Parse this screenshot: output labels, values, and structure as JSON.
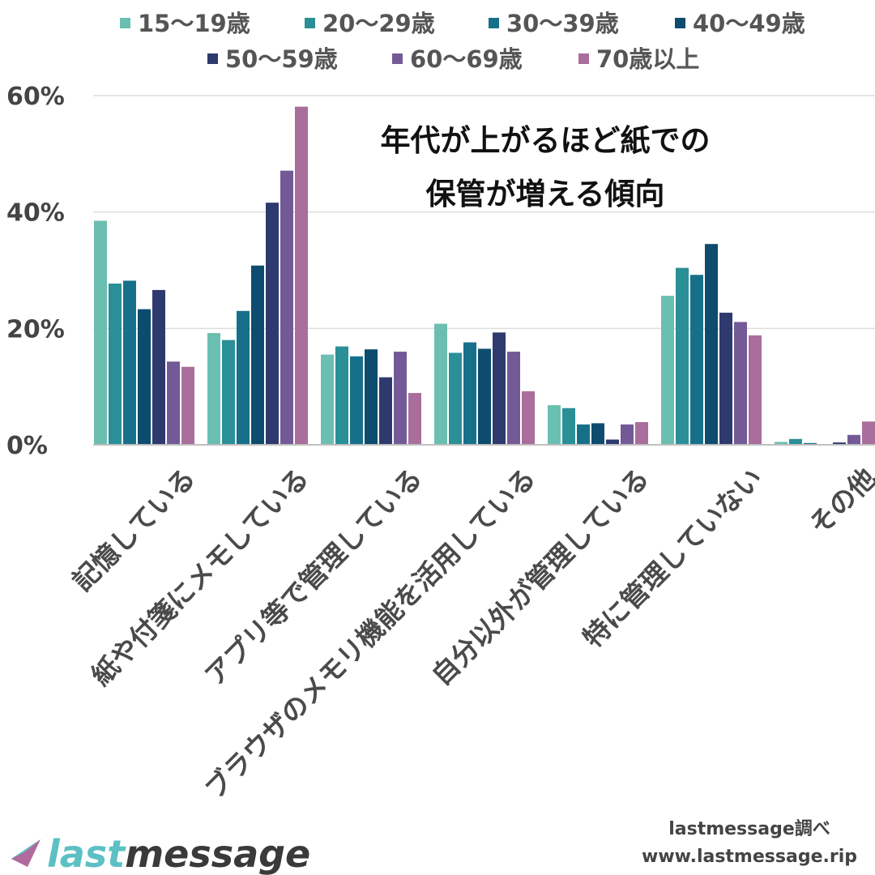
{
  "chart_data": {
    "type": "bar",
    "categories": [
      "記憶している",
      "紙や付箋にメモしている",
      "アプリ等で管理している",
      "ブラウザのメモリ機能を活用している",
      "自分以外が管理している",
      "特に管理していない",
      "その他"
    ],
    "series": [
      {
        "name": "15〜19歳",
        "color": "#6bbfb1",
        "values": [
          38.5,
          19.2,
          15.5,
          20.8,
          6.8,
          25.6,
          0.5
        ]
      },
      {
        "name": "20〜29歳",
        "color": "#2a8f96",
        "values": [
          27.7,
          18.0,
          16.9,
          15.8,
          6.3,
          30.4,
          1.0
        ]
      },
      {
        "name": "30〜39歳",
        "color": "#17708a",
        "values": [
          28.2,
          23.0,
          15.2,
          17.6,
          3.5,
          29.2,
          0.3
        ]
      },
      {
        "name": "40〜49歳",
        "color": "#0d4c6e",
        "values": [
          23.3,
          30.8,
          16.4,
          16.5,
          3.7,
          34.5,
          0.0
        ]
      },
      {
        "name": "50〜59歳",
        "color": "#2e3a6e",
        "values": [
          26.6,
          41.6,
          11.6,
          19.3,
          0.9,
          22.7,
          0.4
        ]
      },
      {
        "name": "60〜69歳",
        "color": "#735a97",
        "values": [
          14.3,
          47.1,
          16.0,
          16.0,
          3.5,
          21.1,
          1.7
        ]
      },
      {
        "name": "70歳以上",
        "color": "#a96e9c",
        "values": [
          13.4,
          58.1,
          8.9,
          9.2,
          3.9,
          18.8,
          4.0
        ]
      }
    ],
    "ylim": [
      0,
      60
    ],
    "yticks": [
      "0%",
      "20%",
      "40%",
      "60%"
    ],
    "ytick_values": [
      0,
      20,
      40,
      60
    ],
    "grid": true,
    "legend_position": "top",
    "annotation": [
      "年代が上がるほど紙での",
      "保管が増える傾向"
    ]
  },
  "credit": {
    "line1": "lastmessage調べ",
    "line2": "www.lastmessage.rip"
  },
  "logo": {
    "text_a": "last",
    "text_b": "message",
    "color_a": "#5cc0c4",
    "color_b": "#3a3a3a"
  }
}
